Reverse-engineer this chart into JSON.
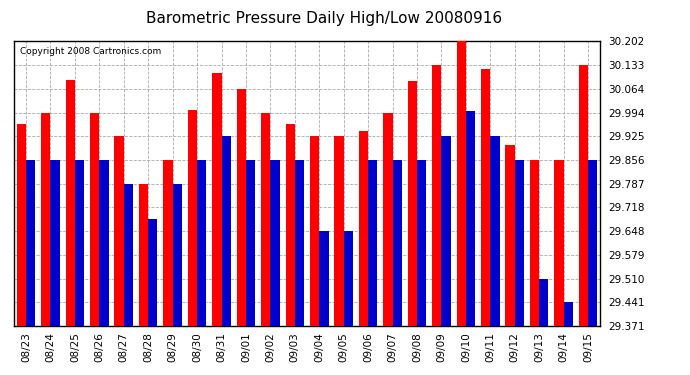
{
  "title": "Barometric Pressure Daily High/Low 20080916",
  "copyright": "Copyright 2008 Cartronics.com",
  "categories": [
    "08/23",
    "08/24",
    "08/25",
    "08/26",
    "08/27",
    "08/28",
    "08/29",
    "08/30",
    "08/31",
    "09/01",
    "09/02",
    "09/03",
    "09/04",
    "09/05",
    "09/06",
    "09/07",
    "09/08",
    "09/09",
    "09/10",
    "09/11",
    "09/12",
    "09/13",
    "09/14",
    "09/15"
  ],
  "highs": [
    29.96,
    29.994,
    30.09,
    29.994,
    29.925,
    29.787,
    29.856,
    30.002,
    30.108,
    30.064,
    29.994,
    29.96,
    29.925,
    29.925,
    29.94,
    29.994,
    30.085,
    30.133,
    30.202,
    30.12,
    29.9,
    29.856,
    29.856,
    30.133
  ],
  "lows": [
    29.856,
    29.856,
    29.856,
    29.856,
    29.787,
    29.683,
    29.787,
    29.856,
    29.925,
    29.856,
    29.856,
    29.856,
    29.648,
    29.648,
    29.856,
    29.856,
    29.856,
    29.925,
    30.0,
    29.925,
    29.856,
    29.51,
    29.441,
    29.856
  ],
  "ylim_min": 29.371,
  "ylim_max": 30.202,
  "yticks": [
    29.371,
    29.441,
    29.51,
    29.579,
    29.648,
    29.718,
    29.787,
    29.856,
    29.925,
    29.994,
    30.064,
    30.133,
    30.202
  ],
  "high_color": "#ff0000",
  "low_color": "#0000cc",
  "bg_color": "#ffffff",
  "grid_color": "#aaaaaa",
  "title_fontsize": 11,
  "tick_fontsize": 7.5,
  "copyright_fontsize": 6.5
}
